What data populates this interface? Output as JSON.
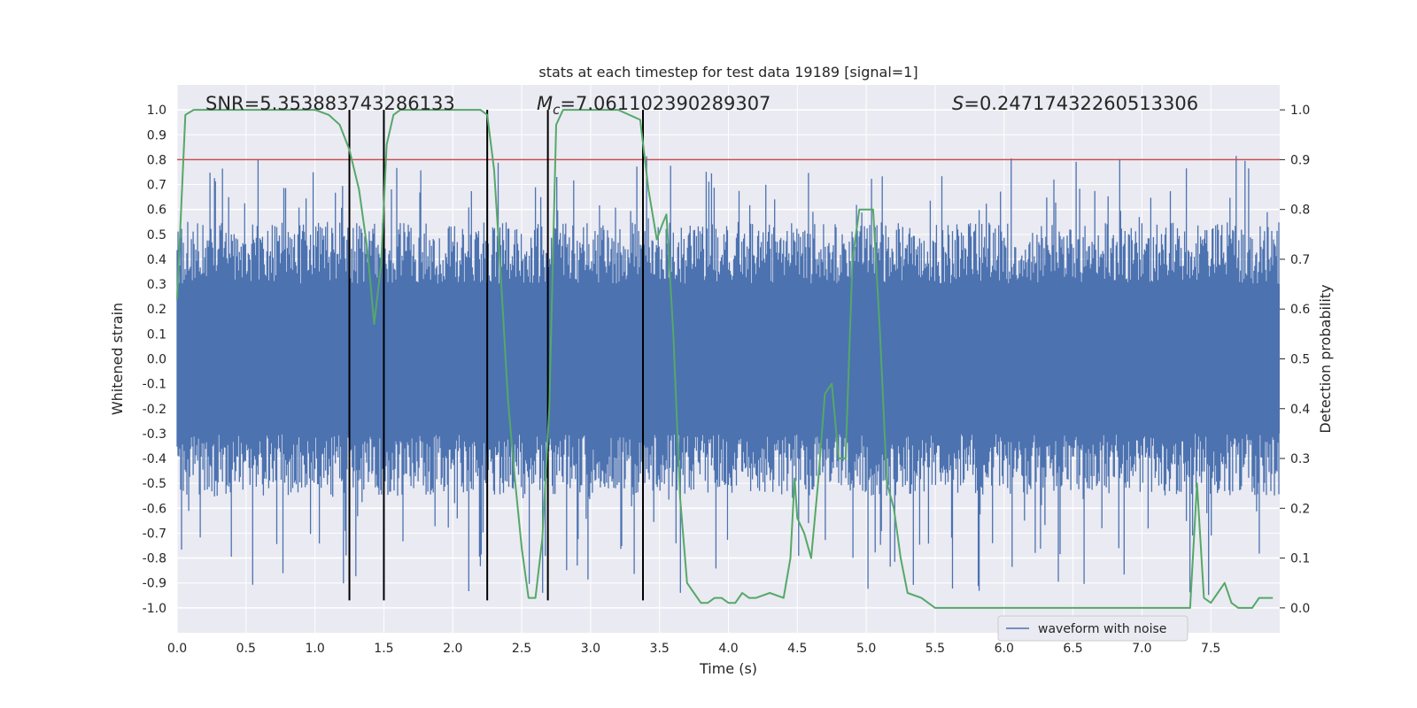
{
  "chart_data": {
    "type": "line",
    "title": "stats at each timestep for test data 19189 [signal=1]",
    "xlabel": "Time (s)",
    "ylabel_left": "Whitened strain",
    "ylabel_right": "Detection probability",
    "xlim": [
      0.0,
      8.0
    ],
    "ylim_left": [
      -1.1,
      1.1
    ],
    "ylim_right": [
      -0.05,
      1.05
    ],
    "x_ticks": [
      "0.0",
      "0.5",
      "1.0",
      "1.5",
      "2.0",
      "2.5",
      "3.0",
      "3.5",
      "4.0",
      "4.5",
      "5.0",
      "5.5",
      "6.0",
      "6.5",
      "7.0",
      "7.5"
    ],
    "y_ticks_left": [
      "1.0",
      "0.9",
      "0.8",
      "0.7",
      "0.6",
      "0.5",
      "0.4",
      "0.3",
      "0.2",
      "0.1",
      "0.0",
      "-0.1",
      "-0.2",
      "-0.3",
      "-0.4",
      "-0.5",
      "-0.6",
      "-0.7",
      "-0.8",
      "-0.9",
      "-1.0"
    ],
    "y_ticks_right": [
      "1.0",
      "0.9",
      "0.8",
      "0.7",
      "0.6",
      "0.5",
      "0.4",
      "0.3",
      "0.2",
      "0.1",
      "0.0"
    ],
    "grid": true,
    "legend_position": "bottom-right",
    "annotations": {
      "snr": "SNR=5.353883743286133",
      "mc_symbol": "M",
      "mc_subscript": "c",
      "mc_value": "=7.061102390289307",
      "s_symbol": "S",
      "s_value": "=0.24717432260513306"
    },
    "threshold": {
      "y": 0.8,
      "color": "#c44e52"
    },
    "vertical_lines": {
      "x": [
        1.25,
        1.5,
        2.25,
        2.69,
        3.38
      ],
      "y_range": [
        -0.97,
        1.0
      ],
      "color": "#000000"
    },
    "series": [
      {
        "name": "waveform with noise",
        "color": "#4c72b0",
        "envelope": {
          "typical_amplitude": [
            -0.55,
            0.55
          ],
          "peak_upper": [
            0.3,
            0.82
          ],
          "peak_lower": [
            -0.3,
            -0.95
          ]
        }
      },
      {
        "color": "#55a868",
        "x": [
          0.0,
          0.06,
          0.12,
          0.2,
          0.5,
          0.8,
          1.0,
          1.1,
          1.18,
          1.25,
          1.32,
          1.38,
          1.43,
          1.48,
          1.52,
          1.57,
          1.62,
          1.7,
          2.0,
          2.2,
          2.25,
          2.3,
          2.35,
          2.4,
          2.45,
          2.5,
          2.55,
          2.6,
          2.65,
          2.7,
          2.75,
          2.8,
          2.9,
          3.0,
          3.2,
          3.36,
          3.42,
          3.48,
          3.52,
          3.55,
          3.6,
          3.65,
          3.7,
          3.75,
          3.8,
          3.85,
          3.9,
          3.95,
          4.0,
          4.05,
          4.1,
          4.15,
          4.2,
          4.3,
          4.4,
          4.45,
          4.48,
          4.5,
          4.55,
          4.6,
          4.65,
          4.7,
          4.75,
          4.8,
          4.85,
          4.9,
          4.95,
          5.0,
          5.05,
          5.1,
          5.15,
          5.2,
          5.25,
          5.3,
          5.4,
          5.5,
          6.0,
          6.5,
          6.6,
          6.7,
          6.8,
          7.0,
          7.2,
          7.3,
          7.35,
          7.4,
          7.45,
          7.5,
          7.55,
          7.6,
          7.65,
          7.7,
          7.75,
          7.8,
          7.85,
          7.9,
          7.95
        ],
        "values": [
          0.62,
          0.99,
          1.0,
          1.0,
          1.0,
          1.0,
          1.0,
          0.99,
          0.97,
          0.92,
          0.84,
          0.72,
          0.57,
          0.69,
          0.93,
          0.99,
          1.0,
          1.0,
          1.0,
          1.0,
          0.99,
          0.88,
          0.66,
          0.42,
          0.26,
          0.12,
          0.02,
          0.02,
          0.14,
          0.4,
          0.97,
          1.0,
          1.0,
          1.0,
          1.0,
          0.98,
          0.84,
          0.74,
          0.77,
          0.79,
          0.55,
          0.22,
          0.05,
          0.03,
          0.01,
          0.01,
          0.02,
          0.02,
          0.01,
          0.01,
          0.03,
          0.02,
          0.02,
          0.03,
          0.02,
          0.1,
          0.26,
          0.18,
          0.15,
          0.1,
          0.25,
          0.43,
          0.45,
          0.3,
          0.3,
          0.7,
          0.8,
          0.8,
          0.8,
          0.55,
          0.25,
          0.2,
          0.1,
          0.03,
          0.02,
          0.0,
          0.0,
          0.0,
          0.0,
          0.0,
          0.0,
          0.0,
          0.0,
          0.0,
          0.0,
          0.25,
          0.02,
          0.01,
          0.03,
          0.05,
          0.01,
          0.0,
          0.0,
          0.0,
          0.02,
          0.02,
          0.02
        ],
        "note_axis": "right"
      }
    ]
  }
}
